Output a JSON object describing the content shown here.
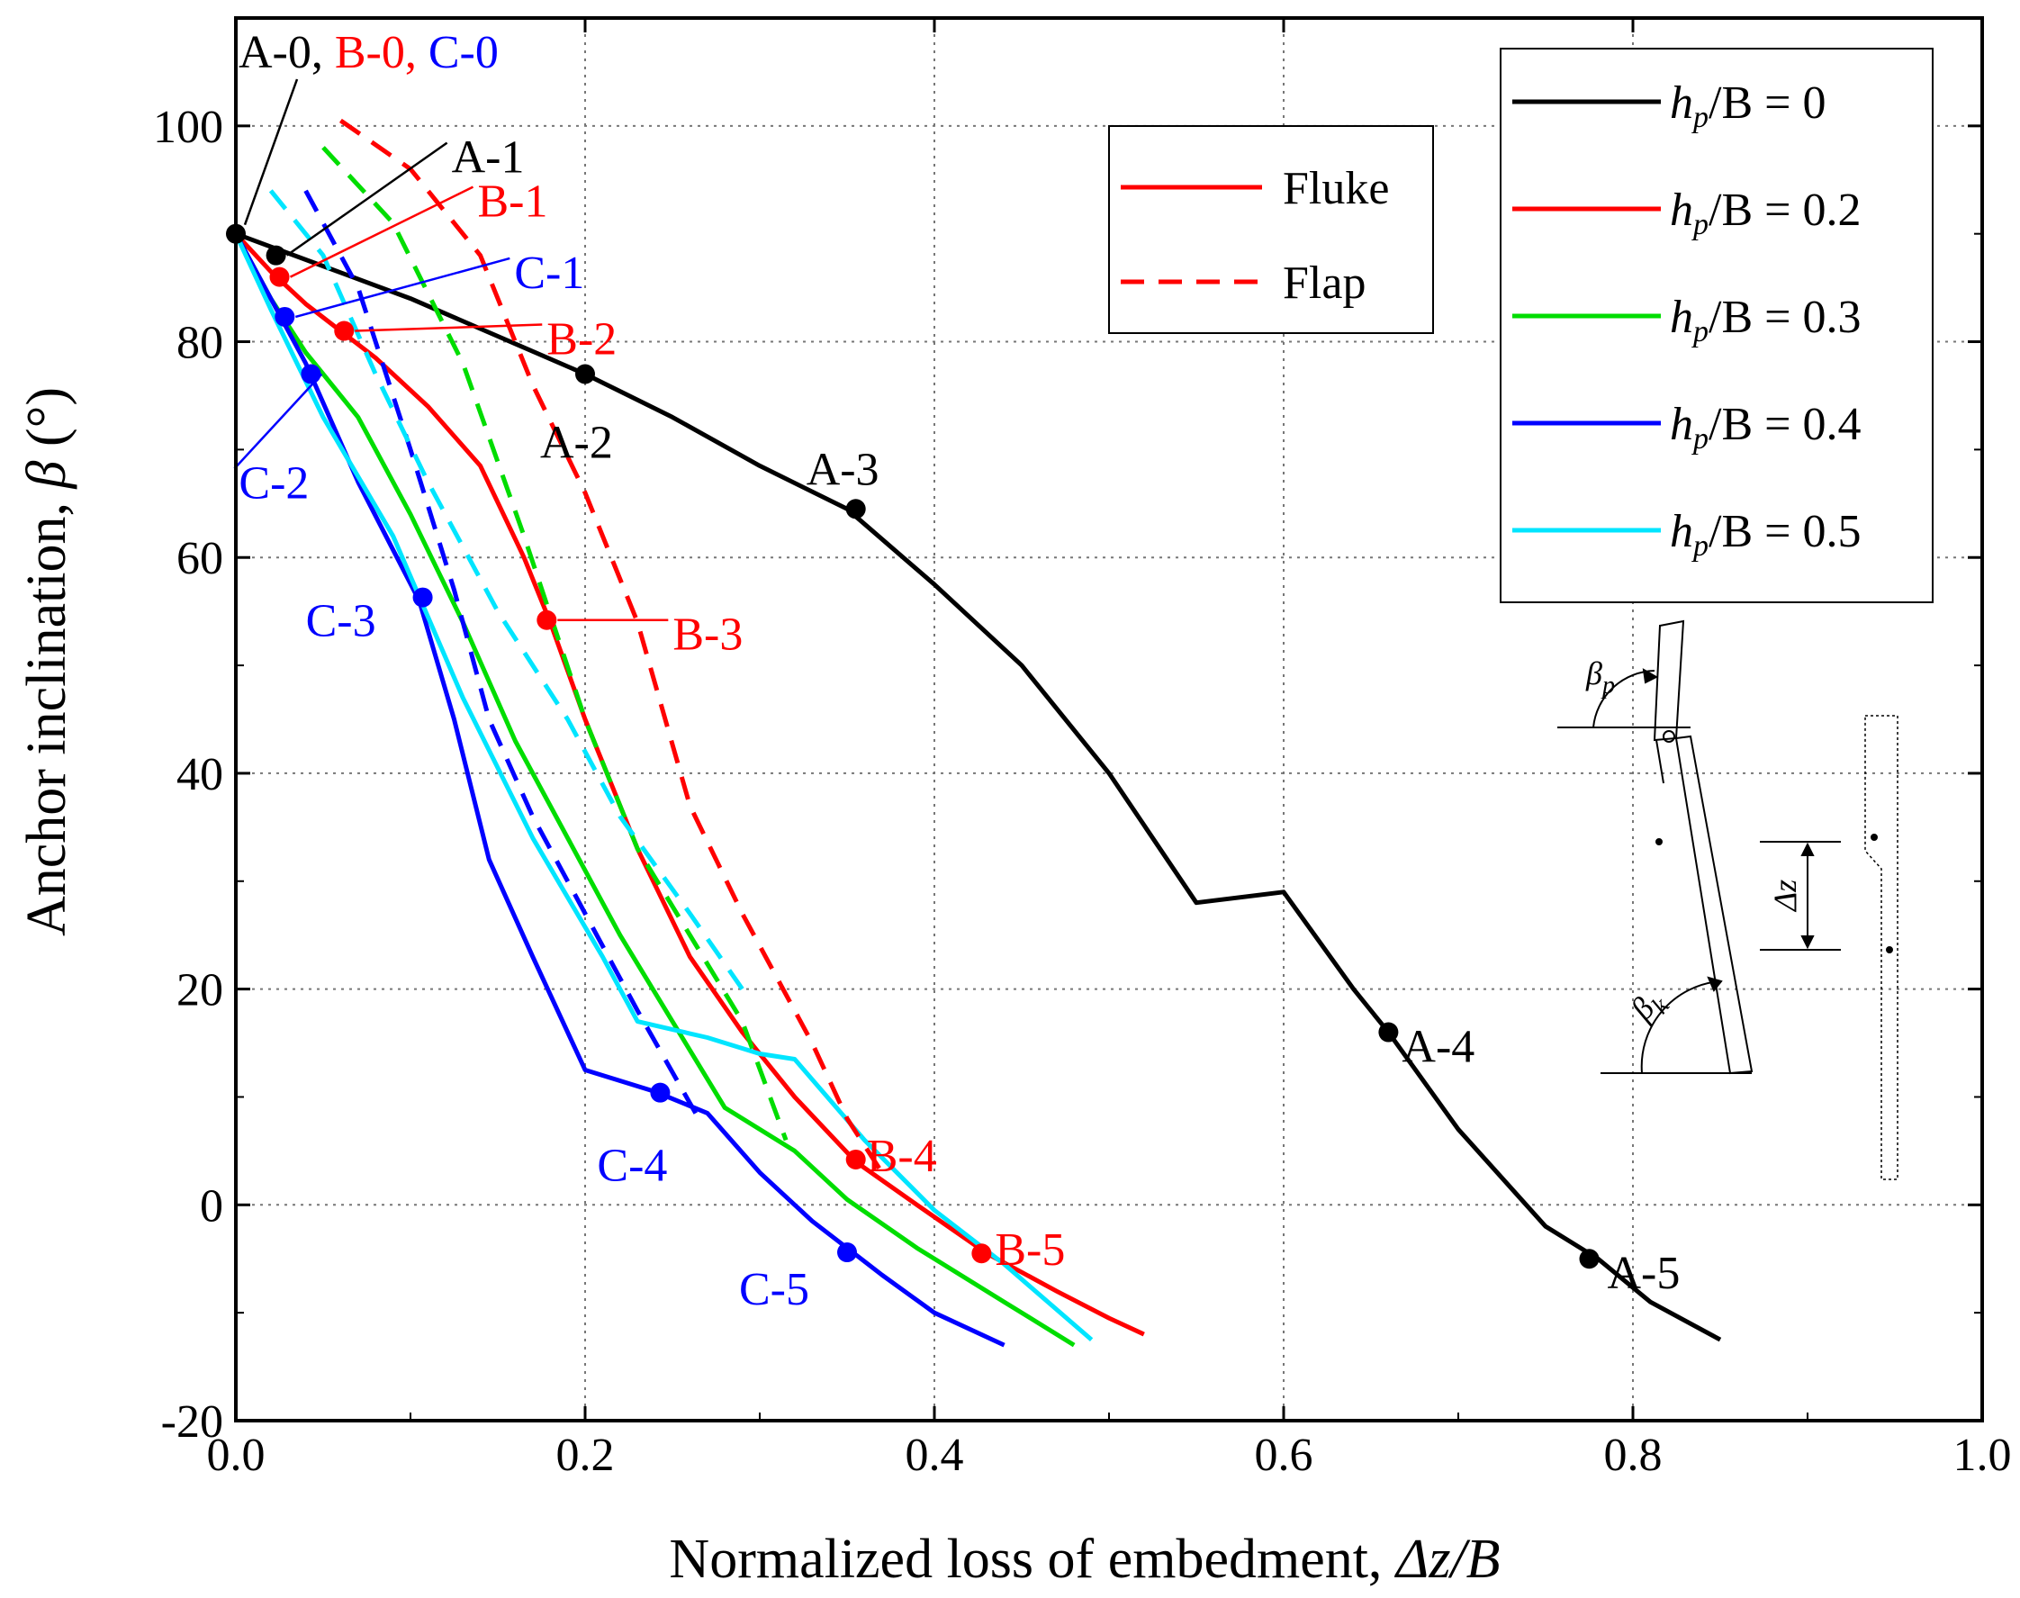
{
  "chart_data": {
    "type": "line",
    "xlabel": "Normalized loss of embedment, ",
    "xlabel_var": "Δz/B",
    "ylabel": "Anchor inclination, ",
    "ylabel_var": "β",
    "ylabel_unit": " (°)",
    "xlim": [
      0.0,
      1.0
    ],
    "ylim": [
      -20,
      110
    ],
    "xticks": [
      0.0,
      0.2,
      0.4,
      0.6,
      0.8,
      1.0
    ],
    "xtick_labels": [
      "0.0",
      "0.2",
      "0.4",
      "0.6",
      "0.8",
      "1.0"
    ],
    "yticks": [
      -20,
      0,
      20,
      40,
      60,
      80,
      100
    ],
    "ytick_labels": [
      "-20",
      "0",
      "20",
      "40",
      "60",
      "80",
      "100"
    ],
    "grid": true,
    "legend_styles": [
      {
        "label": "Fluke",
        "dash": "solid",
        "color": "#ff0000"
      },
      {
        "label": "Flap",
        "dash": "dashed",
        "color": "#ff0000"
      }
    ],
    "legend_series": [
      {
        "prefix": "h",
        "sub": "p",
        "suffix": "/B = 0",
        "color": "#000000"
      },
      {
        "prefix": "h",
        "sub": "p",
        "suffix": "/B = 0.2",
        "color": "#ff0000"
      },
      {
        "prefix": "h",
        "sub": "p",
        "suffix": "/B = 0.3",
        "color": "#00dd00"
      },
      {
        "prefix": "h",
        "sub": "p",
        "suffix": "/B = 0.4",
        "color": "#0000ff"
      },
      {
        "prefix": "h",
        "sub": "p",
        "suffix": "/B = 0.5",
        "color": "#00e5ff"
      }
    ],
    "series": [
      {
        "name": "hp/B = 0 Fluke",
        "color": "#000000",
        "dash": "solid",
        "x": [
          0.0,
          0.05,
          0.1,
          0.15,
          0.2,
          0.25,
          0.3,
          0.35,
          0.4,
          0.45,
          0.5,
          0.55,
          0.6,
          0.64,
          0.66,
          0.7,
          0.75,
          0.78,
          0.81,
          0.85
        ],
        "y": [
          90,
          87,
          84,
          80.5,
          77,
          73,
          68.5,
          64.5,
          57.5,
          50,
          40,
          28,
          29,
          20,
          16,
          7,
          -2,
          -5,
          -9,
          -12.5
        ]
      },
      {
        "name": "hp/B = 0.2 Fluke",
        "color": "#ff0000",
        "dash": "solid",
        "x": [
          0.0,
          0.02,
          0.04,
          0.06,
          0.08,
          0.11,
          0.14,
          0.165,
          0.18,
          0.2,
          0.23,
          0.26,
          0.29,
          0.32,
          0.355,
          0.39,
          0.43,
          0.47,
          0.5,
          0.52
        ],
        "y": [
          90,
          86.5,
          83.5,
          81,
          78.5,
          74,
          68.5,
          60,
          54,
          45,
          33,
          23,
          16,
          10,
          4,
          0,
          -4.5,
          -8,
          -10.5,
          -12
        ]
      },
      {
        "name": "hp/B = 0.3 Fluke",
        "color": "#00dd00",
        "dash": "solid",
        "x": [
          0.0,
          0.02,
          0.04,
          0.07,
          0.1,
          0.13,
          0.16,
          0.19,
          0.22,
          0.25,
          0.28,
          0.32,
          0.35,
          0.39,
          0.44,
          0.48
        ],
        "y": [
          90,
          84,
          79,
          73,
          64,
          54,
          43,
          34,
          25,
          17,
          9,
          5,
          0.5,
          -4,
          -9,
          -13
        ]
      },
      {
        "name": "hp/B = 0.4 Fluke",
        "color": "#0000ff",
        "dash": "solid",
        "x": [
          0.0,
          0.02,
          0.04,
          0.07,
          0.105,
          0.125,
          0.145,
          0.17,
          0.2,
          0.24,
          0.27,
          0.3,
          0.33,
          0.35,
          0.37,
          0.4,
          0.44
        ],
        "y": [
          90,
          84,
          78,
          67,
          56,
          45,
          32,
          23,
          12.5,
          10.5,
          8.5,
          3,
          -1.5,
          -4,
          -6.5,
          -10,
          -13
        ]
      },
      {
        "name": "hp/B = 0.5 Fluke",
        "color": "#00e5ff",
        "dash": "solid",
        "x": [
          0.0,
          0.02,
          0.05,
          0.09,
          0.13,
          0.17,
          0.21,
          0.23,
          0.27,
          0.3,
          0.32,
          0.36,
          0.4,
          0.44,
          0.49
        ],
        "y": [
          90,
          83,
          73,
          62,
          47,
          34,
          23,
          17,
          15.5,
          14,
          13.5,
          6,
          -0.5,
          -5.5,
          -12.5
        ]
      },
      {
        "name": "hp/B = 0.2 Flap",
        "color": "#ff0000",
        "dash": "dashed",
        "x": [
          0.06,
          0.1,
          0.14,
          0.17,
          0.2,
          0.23,
          0.26,
          0.29,
          0.33,
          0.35,
          0.37
        ],
        "y": [
          100.5,
          96,
          88,
          76,
          66,
          54,
          37,
          27,
          15,
          8,
          3
        ]
      },
      {
        "name": "hp/B = 0.3 Flap",
        "color": "#00dd00",
        "dash": "dashed",
        "x": [
          0.05,
          0.09,
          0.13,
          0.165,
          0.2,
          0.23,
          0.26,
          0.29,
          0.315
        ],
        "y": [
          98,
          91,
          78,
          62,
          45,
          33,
          25,
          17,
          6
        ]
      },
      {
        "name": "hp/B = 0.4 Flap",
        "color": "#0000ff",
        "dash": "dashed",
        "x": [
          0.04,
          0.07,
          0.1,
          0.125,
          0.145,
          0.17,
          0.2,
          0.23,
          0.265
        ],
        "y": [
          94,
          85,
          70,
          57,
          45,
          36,
          27,
          18,
          8
        ]
      },
      {
        "name": "hp/B = 0.5 Flap",
        "color": "#00e5ff",
        "dash": "dashed",
        "x": [
          0.02,
          0.05,
          0.08,
          0.11,
          0.15,
          0.19,
          0.22,
          0.26,
          0.29
        ],
        "y": [
          94,
          88,
          77,
          67,
          55,
          45,
          36,
          27,
          20
        ]
      }
    ],
    "markers": [
      {
        "label": "A-0",
        "x": 0.0,
        "y": 90,
        "color": "#000000"
      },
      {
        "label": "A-1",
        "x": 0.023,
        "y": 88,
        "color": "#000000"
      },
      {
        "label": "A-2",
        "x": 0.2,
        "y": 77,
        "color": "#000000"
      },
      {
        "label": "A-3",
        "x": 0.355,
        "y": 64.5,
        "color": "#000000"
      },
      {
        "label": "A-4",
        "x": 0.66,
        "y": 16,
        "color": "#000000"
      },
      {
        "label": "A-5",
        "x": 0.775,
        "y": -5,
        "color": "#000000"
      },
      {
        "label": "B-1",
        "x": 0.025,
        "y": 86,
        "color": "#ff0000"
      },
      {
        "label": "B-2",
        "x": 0.062,
        "y": 81,
        "color": "#ff0000"
      },
      {
        "label": "B-3",
        "x": 0.178,
        "y": 54.2,
        "color": "#ff0000"
      },
      {
        "label": "B-4",
        "x": 0.355,
        "y": 4.2,
        "color": "#ff0000"
      },
      {
        "label": "B-5",
        "x": 0.427,
        "y": -4.5,
        "color": "#ff0000"
      },
      {
        "label": "C-1",
        "x": 0.028,
        "y": 82.3,
        "color": "#0000ff"
      },
      {
        "label": "C-2",
        "x": 0.043,
        "y": 77,
        "color": "#0000ff"
      },
      {
        "label": "C-3",
        "x": 0.107,
        "y": 56.3,
        "color": "#0000ff"
      },
      {
        "label": "C-4",
        "x": 0.243,
        "y": 10.4,
        "color": "#0000ff"
      },
      {
        "label": "C-5",
        "x": 0.35,
        "y": -4.4,
        "color": "#0000ff"
      }
    ],
    "annotations": [
      {
        "text": "A-0, ",
        "color": "#000000"
      },
      {
        "text": "B-0, ",
        "color": "#ff0000"
      },
      {
        "text": "C-0",
        "color": "#0000ff"
      }
    ],
    "diagram_labels": {
      "beta_p": "β",
      "beta_p_sub": "p",
      "beta_k": "β",
      "beta_k_sub": "k",
      "delta_z": "Δz"
    }
  }
}
